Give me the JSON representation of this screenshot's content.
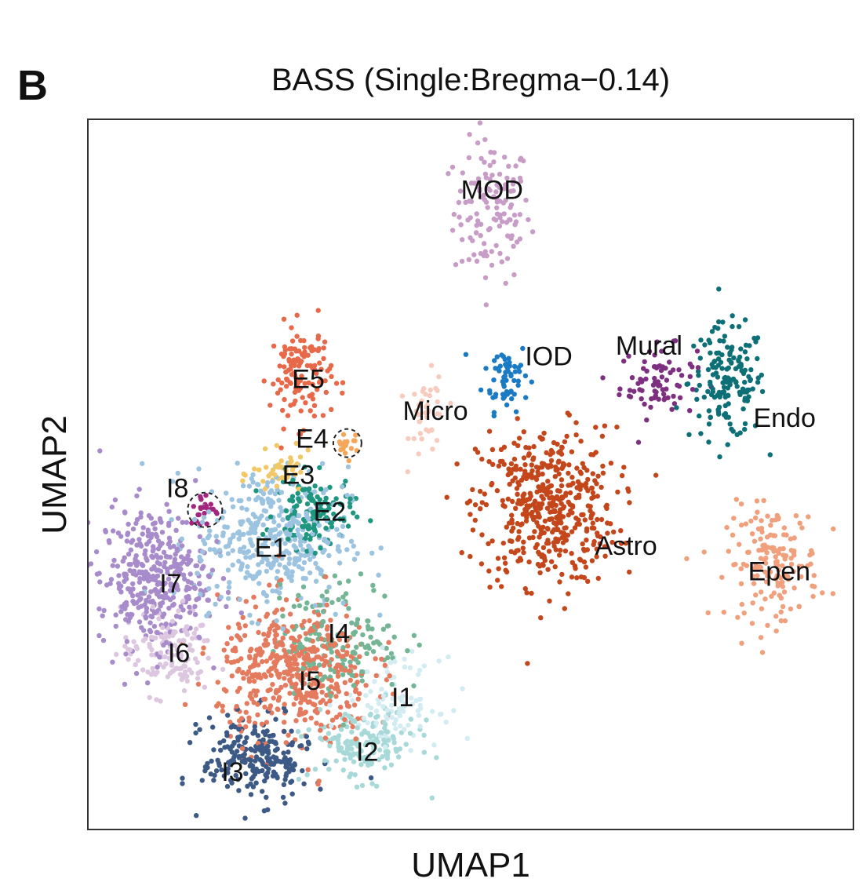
{
  "chart_data": {
    "type": "scatter",
    "panel_label": "B",
    "title": "BASS (Single:Bregma−0.14)",
    "xlabel": "UMAP1",
    "ylabel": "UMAP2",
    "xlim": [
      0,
      100
    ],
    "ylim": [
      0,
      100
    ],
    "grid": false,
    "legend": "none (inline cluster labels)",
    "clusters": [
      {
        "name": "MOD",
        "color": "#c79cc6",
        "cx": 52.8,
        "cy": 87,
        "sx": 2.5,
        "sy": 5,
        "n": 130,
        "label_x": 52.8,
        "label_y": 90.1
      },
      {
        "name": "IOD",
        "color": "#1a7bc4",
        "cx": 54.6,
        "cy": 64,
        "sx": 1.5,
        "sy": 2.5,
        "n": 60,
        "label_x": 60.2,
        "label_y": 66.7
      },
      {
        "name": "Mural",
        "color": "#7d2f80",
        "cx": 74.5,
        "cy": 63,
        "sx": 2.5,
        "sy": 2.5,
        "n": 80,
        "label_x": 73.3,
        "label_y": 68.2
      },
      {
        "name": "Endo",
        "color": "#0e7077",
        "cx": 83.5,
        "cy": 63,
        "sx": 2.5,
        "sy": 4,
        "n": 160,
        "label_x": 91,
        "label_y": 58
      },
      {
        "name": "Micro",
        "color": "#f7cbbd",
        "cx": 44.5,
        "cy": 58,
        "sx": 1.2,
        "sy": 3,
        "n": 40,
        "label_x": 45.4,
        "label_y": 59
      },
      {
        "name": "Astro",
        "color": "#c4461b",
        "cx": 60,
        "cy": 45.5,
        "sx": 4.5,
        "sy": 5.5,
        "n": 480,
        "label_x": 70.3,
        "label_y": 40
      },
      {
        "name": "Epen",
        "color": "#f0a07c",
        "cx": 89.5,
        "cy": 37.5,
        "sx": 3,
        "sy": 4,
        "n": 160,
        "label_x": 90.3,
        "label_y": 36.4
      },
      {
        "name": "E5",
        "color": "#e8694a",
        "cx": 27.8,
        "cy": 64,
        "sx": 2,
        "sy": 3.5,
        "n": 130,
        "label_x": 28.8,
        "label_y": 63.5
      },
      {
        "name": "E4",
        "color": "#f4a65a",
        "cx": 33.8,
        "cy": 54.4,
        "sx": 0.8,
        "sy": 1,
        "n": 18,
        "label_x": 29.3,
        "label_y": 55.1
      },
      {
        "name": "E3",
        "color": "#f1c865",
        "cx": 25.5,
        "cy": 50,
        "sx": 2,
        "sy": 1.5,
        "n": 45,
        "label_x": 27.5,
        "label_y": 50
      },
      {
        "name": "E2",
        "color": "#1f9680",
        "cx": 29.5,
        "cy": 44.5,
        "sx": 2.5,
        "sy": 2.5,
        "n": 130,
        "label_x": 31.6,
        "label_y": 44.8
      },
      {
        "name": "E1",
        "color": "#9cc4e0",
        "cx": 24,
        "cy": 41,
        "sx": 5,
        "sy": 5,
        "n": 380,
        "label_x": 23.9,
        "label_y": 39.7
      },
      {
        "name": "I8",
        "color": "#a3267e",
        "cx": 15.3,
        "cy": 45,
        "sx": 1,
        "sy": 1.2,
        "n": 25,
        "label_x": 11.7,
        "label_y": 48.1
      },
      {
        "name": "I7",
        "color": "#a88bcb",
        "cx": 8.5,
        "cy": 35.5,
        "sx": 3.5,
        "sy": 5,
        "n": 380,
        "label_x": 10.8,
        "label_y": 34.7
      },
      {
        "name": "I6",
        "color": "#dcc6e0",
        "cx": 10.5,
        "cy": 25,
        "sx": 3,
        "sy": 3,
        "n": 130,
        "label_x": 11.9,
        "label_y": 24.9
      },
      {
        "name": "I4",
        "color": "#73b595",
        "cx": 33,
        "cy": 27,
        "sx": 4,
        "sy": 4,
        "n": 160,
        "label_x": 32.8,
        "label_y": 27.7
      },
      {
        "name": "I5",
        "color": "#e47b5e",
        "cx": 27,
        "cy": 22,
        "sx": 5,
        "sy": 5,
        "n": 480,
        "label_x": 29,
        "label_y": 21
      },
      {
        "name": "I1",
        "color": "#d3ecf2",
        "cx": 40,
        "cy": 18,
        "sx": 3,
        "sy": 3,
        "n": 100,
        "label_x": 41.1,
        "label_y": 18.7
      },
      {
        "name": "I2",
        "color": "#a6d9d8",
        "cx": 36,
        "cy": 12,
        "sx": 3.5,
        "sy": 2.5,
        "n": 160,
        "label_x": 36.5,
        "label_y": 11
      },
      {
        "name": "I3",
        "color": "#3d5a86",
        "cx": 22,
        "cy": 10,
        "sx": 3.5,
        "sy": 3,
        "n": 230,
        "label_x": 18.9,
        "label_y": 8.2
      }
    ],
    "highlights": [
      {
        "cluster": "I8",
        "cx": 15.3,
        "cy": 45
      },
      {
        "cluster": "E4",
        "cx": 33.9,
        "cy": 54.4
      }
    ]
  }
}
